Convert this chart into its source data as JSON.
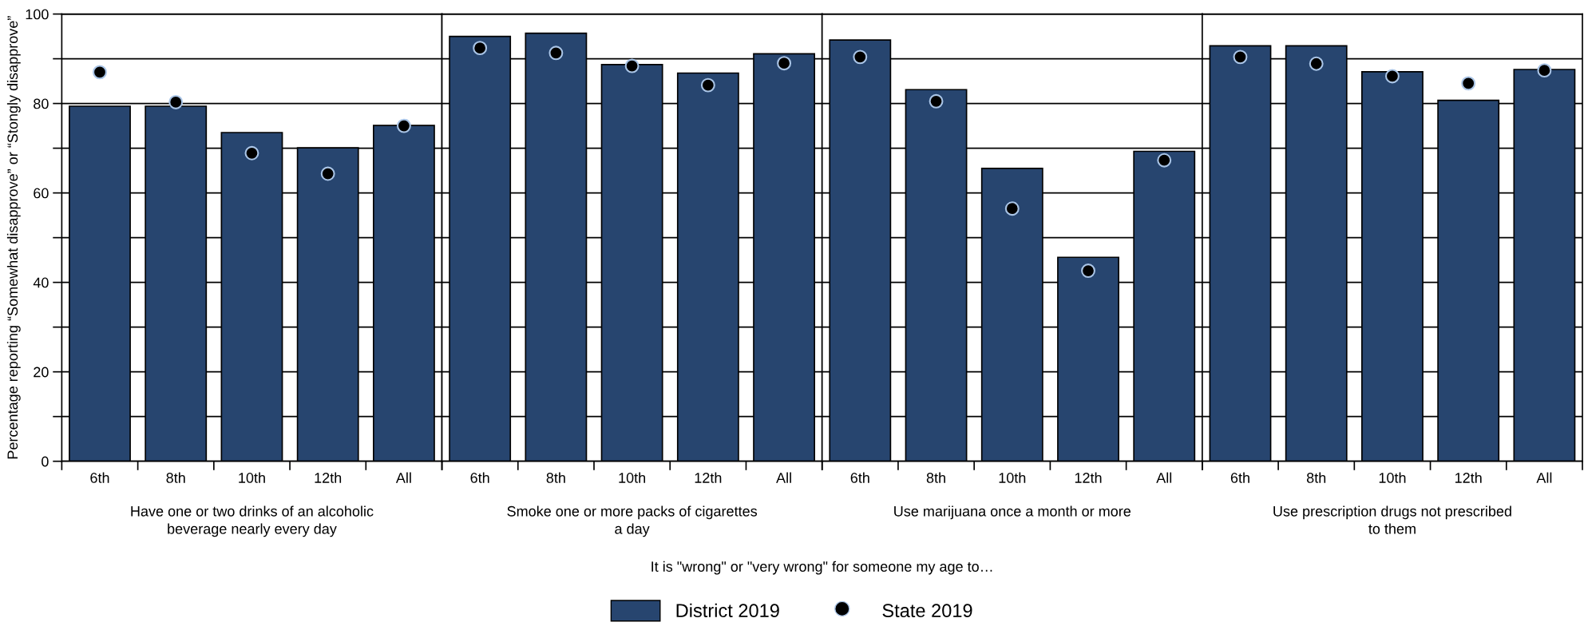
{
  "chart_data": [
    {
      "type": "bar",
      "xlabel": "Have one or two drinks of an alcoholic\nbeverage nearly every day",
      "ylabel": "Percentage reporting “Somewhat disapprove” or “Stongly disapprove”",
      "categories": [
        "6th",
        "8th",
        "10th",
        "12th",
        "All"
      ],
      "series": [
        {
          "name": "District 2019",
          "color": "#27456f",
          "values": [
            79.4,
            79.4,
            73.5,
            70.1,
            75.1
          ]
        },
        {
          "name": "State 2019",
          "type": "scatter",
          "color": "#000000",
          "values": [
            87.0,
            80.3,
            68.9,
            64.3,
            75.0
          ]
        }
      ],
      "ylim": [
        0,
        100
      ],
      "yticks": [
        0,
        {
          "value": 10,
          "label": null
        },
        20,
        {
          "value": 30,
          "label": null
        },
        40,
        {
          "value": 50,
          "label": null
        },
        60,
        {
          "value": 70,
          "label": null
        },
        80,
        {
          "value": 90,
          "label": null
        },
        100
      ],
      "grid": "y",
      "legend": "bottom",
      "marker": "circle",
      "annotations": [
        "It is \"wrong\" or \"very wrong\" for someone my age to…"
      ]
    },
    {
      "type": "bar",
      "xlabel": "Smoke one or more packs of cigarettes\na day",
      "categories": [
        "6th",
        "8th",
        "10th",
        "12th",
        "All"
      ],
      "series": [
        {
          "name": "District 2019",
          "color": "#27456f",
          "values": [
            95.0,
            95.7,
            88.7,
            86.8,
            91.1
          ]
        },
        {
          "name": "State 2019",
          "type": "scatter",
          "color": "#000000",
          "values": [
            92.4,
            91.3,
            88.4,
            84.1,
            89.0
          ]
        }
      ],
      "ylim": [
        0,
        100
      ],
      "yticks": [
        0,
        {
          "value": 10,
          "label": null
        },
        20,
        {
          "value": 30,
          "label": null
        },
        40,
        {
          "value": 50,
          "label": null
        },
        60,
        {
          "value": 70,
          "label": null
        },
        80,
        {
          "value": 90,
          "label": null
        },
        100
      ],
      "grid": "y",
      "legend": "bottom",
      "marker": "circle",
      "tick_labels": "x"
    },
    {
      "type": "bar",
      "xlabel": "Use marijuana once a month or more",
      "categories": [
        "6th",
        "8th",
        "10th",
        "12th",
        "All"
      ],
      "series": [
        {
          "name": "District 2019",
          "color": "#27456f",
          "values": [
            94.2,
            83.1,
            65.5,
            45.6,
            69.3
          ]
        },
        {
          "name": "State 2019",
          "type": "scatter",
          "color": "#000000",
          "values": [
            90.4,
            80.5,
            56.5,
            42.6,
            67.3
          ]
        }
      ],
      "ylim": [
        0,
        100
      ],
      "yticks": [
        0,
        {
          "value": 10,
          "label": null
        },
        20,
        {
          "value": 30,
          "label": null
        },
        40,
        {
          "value": 50,
          "label": null
        },
        60,
        {
          "value": 70,
          "label": null
        },
        80,
        {
          "value": 90,
          "label": null
        },
        100
      ],
      "grid": "y",
      "legend": "bottom",
      "marker": "circle",
      "tick_labels": "x"
    },
    {
      "type": "bar",
      "xlabel": "Use prescription drugs not prescribed\nto them",
      "categories": [
        "6th",
        "8th",
        "10th",
        "12th",
        "All"
      ],
      "series": [
        {
          "name": "District 2019",
          "color": "#27456f",
          "values": [
            92.9,
            92.9,
            87.1,
            80.7,
            87.6
          ]
        },
        {
          "name": "State 2019",
          "type": "scatter",
          "color": "#000000",
          "values": [
            90.4,
            88.9,
            86.1,
            84.5,
            87.4
          ]
        }
      ],
      "ylim": [
        0,
        100
      ],
      "yticks": [
        0,
        {
          "value": 10,
          "label": null
        },
        20,
        {
          "value": 30,
          "label": null
        },
        40,
        {
          "value": 50,
          "label": null
        },
        60,
        {
          "value": 70,
          "label": null
        },
        80,
        {
          "value": 90,
          "label": null
        },
        100
      ],
      "grid": "y",
      "legend": "bottom",
      "marker": "circle",
      "tick_labels": "x"
    }
  ]
}
